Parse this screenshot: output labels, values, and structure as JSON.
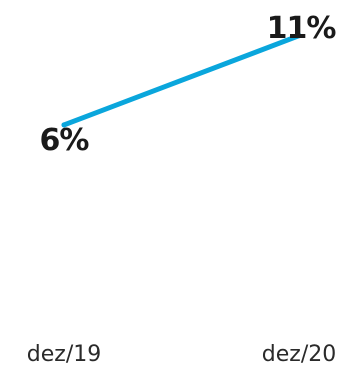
{
  "chart_data": {
    "type": "line",
    "categories": [
      "dez/19",
      "dez/20"
    ],
    "series": [
      {
        "values": [
          6,
          11
        ],
        "data_labels": [
          "6%",
          "11%"
        ],
        "color": "#0aa6dc"
      }
    ],
    "ylim": [
      0,
      13
    ],
    "grid": false,
    "legend": "none"
  }
}
